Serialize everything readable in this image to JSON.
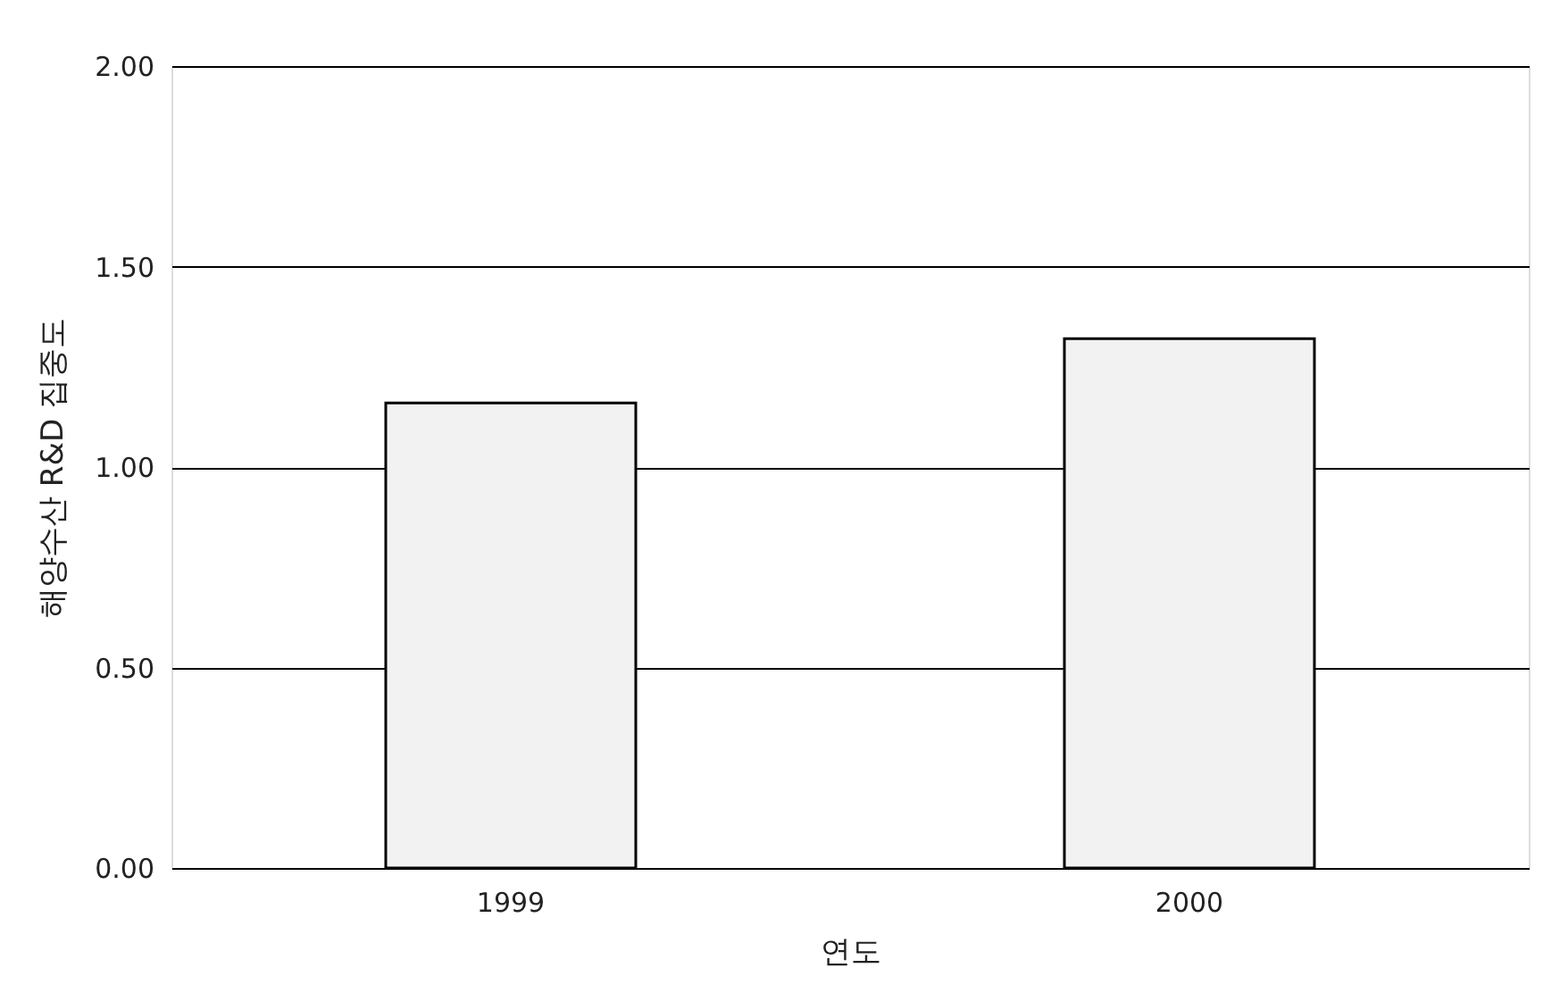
{
  "chart_data": {
    "type": "bar",
    "xlabel": "연도",
    "ylabel": "해양수산 R&D 집중도",
    "categories": [
      "1999",
      "2000"
    ],
    "values": [
      1.16,
      1.32
    ],
    "color": "#f2f2f2",
    "ylim": [
      0,
      2
    ],
    "yticks": [
      {
        "value": 0,
        "label": "0.00"
      },
      {
        "value": 0.5,
        "label": "0.50"
      },
      {
        "value": 1,
        "label": "1.00"
      },
      {
        "value": 1.5,
        "label": "1.50"
      },
      {
        "value": 2,
        "label": "2.00"
      }
    ],
    "grid": "y"
  }
}
